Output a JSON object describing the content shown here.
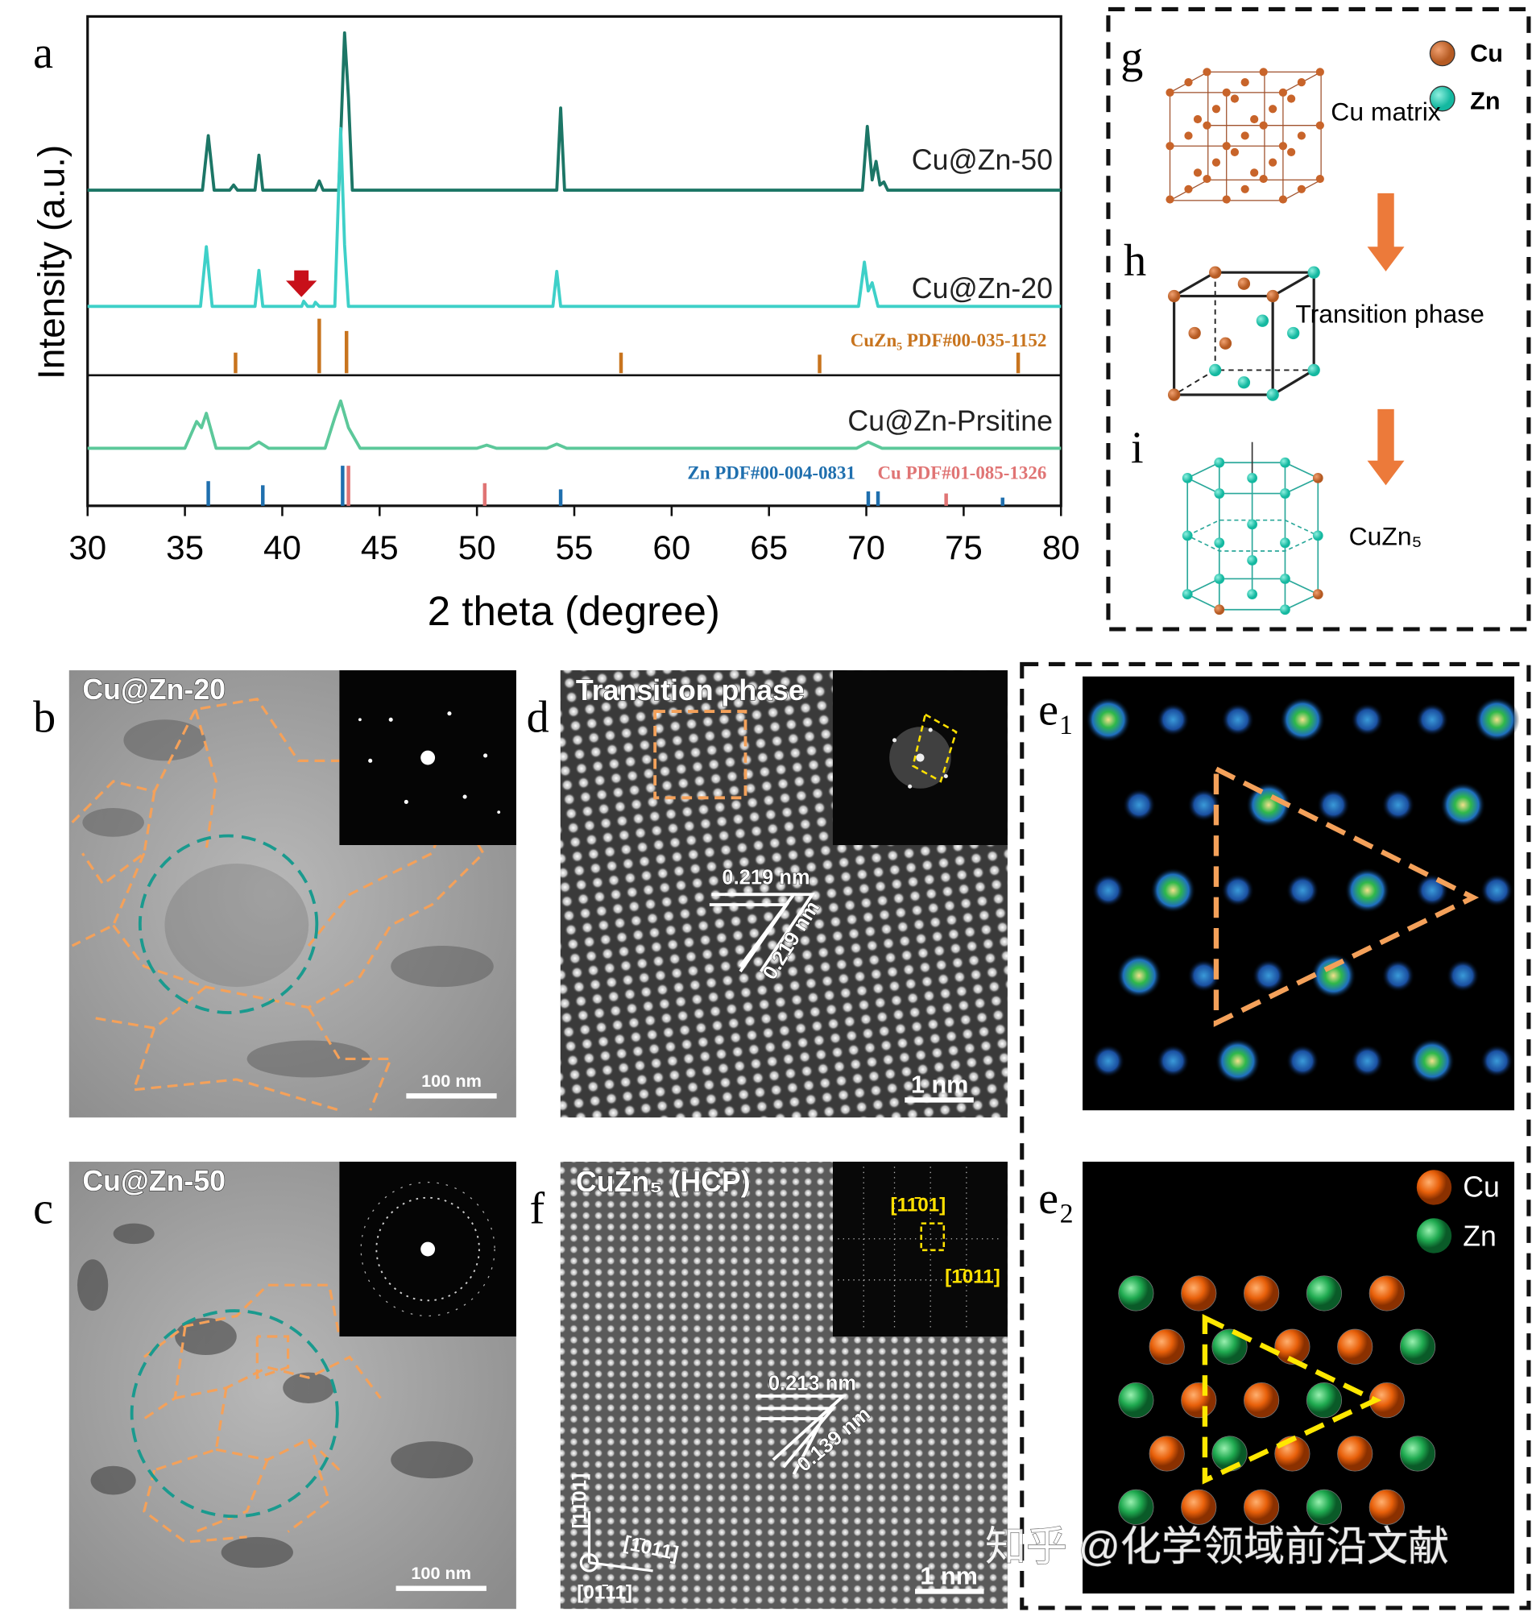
{
  "xrd": {
    "type": "line",
    "panel_label": "a",
    "xlabel": "2 theta (degree)",
    "ylabel": "Intensity (a.u.)",
    "xlim": [
      30,
      80
    ],
    "xticks": [
      30,
      35,
      40,
      45,
      50,
      55,
      60,
      65,
      70,
      75,
      80
    ],
    "series": [
      {
        "name": "Cu@Zn-50",
        "color": "#1c7666",
        "x": [
          30,
          35.9,
          36.2,
          36.5,
          37.3,
          37.5,
          37.7,
          38.6,
          38.8,
          39.0,
          41.7,
          41.9,
          42.1,
          42.9,
          43.2,
          43.4,
          43.6,
          54.1,
          54.3,
          54.5,
          69.8,
          70.05,
          70.3,
          70.5,
          70.7,
          70.9,
          71.1,
          80
        ],
        "values": [
          0,
          0,
          53,
          0,
          0,
          5,
          0,
          0,
          34,
          0,
          0,
          9,
          0,
          0,
          153,
          90,
          0,
          0,
          80,
          0,
          0,
          62,
          10,
          28,
          5,
          8,
          0,
          0
        ]
      },
      {
        "name": "Cu@Zn-20",
        "color": "#3ed0c8",
        "x": [
          30,
          35.8,
          36.1,
          36.4,
          38.6,
          38.8,
          39.0,
          41.0,
          41.1,
          41.3,
          41.6,
          41.7,
          41.9,
          42.7,
          43.0,
          43.2,
          43.4,
          53.9,
          54.1,
          54.3,
          69.6,
          69.9,
          70.1,
          70.3,
          70.6,
          80
        ],
        "values": [
          0,
          0,
          58,
          0,
          0,
          35,
          0,
          0,
          5,
          0,
          0,
          4,
          0,
          0,
          173,
          60,
          0,
          0,
          34,
          0,
          0,
          43,
          15,
          23,
          0,
          0
        ]
      },
      {
        "name": "Cu@Zn-Prsitine",
        "color": "#5cc89a",
        "x": [
          30,
          35.0,
          35.6,
          35.85,
          36.1,
          36.6,
          38.3,
          38.8,
          39.3,
          42.2,
          42.7,
          43.0,
          43.4,
          44.0,
          50.0,
          50.5,
          51.0,
          53.6,
          54.1,
          54.6,
          69.5,
          70.1,
          70.8,
          80
        ],
        "values": [
          0,
          0,
          26,
          20,
          34,
          0,
          0,
          6,
          0,
          0,
          30,
          46,
          20,
          0,
          0,
          3,
          0,
          0,
          4,
          0,
          0,
          6,
          0,
          0
        ]
      }
    ],
    "references": [
      {
        "name": "CuZn₅ PDF#00-035-1152",
        "color": "#c8741e",
        "x": [
          37.6,
          41.9,
          43.3,
          57.4,
          67.6,
          77.8
        ],
        "values": [
          20,
          53,
          41,
          20,
          18,
          20
        ]
      },
      {
        "name": "Zn PDF#00-004-0831",
        "color": "#1f6fae",
        "x": [
          36.2,
          39.0,
          43.1,
          54.3,
          70.1,
          70.6,
          77.0
        ],
        "values": [
          24,
          20,
          39,
          16,
          14,
          14,
          8
        ]
      },
      {
        "name": "Cu PDF#01-085-1326",
        "color": "#e07474",
        "x": [
          43.4,
          50.4,
          74.1
        ],
        "values": [
          39,
          22,
          12
        ]
      }
    ]
  },
  "schematic": {
    "labels": [
      "g",
      "h",
      "i"
    ],
    "legend": [
      "Cu",
      "Zn"
    ],
    "steps": [
      "Cu matrix",
      "Transition phase",
      "CuZn₅"
    ]
  },
  "panels": {
    "b": {
      "label": "b",
      "title": "Cu@Zn-20",
      "scale": "100 nm"
    },
    "c": {
      "label": "c",
      "title": "Cu@Zn-50",
      "scale": "100 nm"
    },
    "d": {
      "label": "d",
      "title": "Transition phase",
      "spacings": [
        "0.219 nm",
        "0.219 nm"
      ],
      "scale": "1 nm"
    },
    "f": {
      "label": "f",
      "title": "CuZn₅ (HCP)",
      "spacings": [
        "0.213 nm",
        "0.139 nm"
      ],
      "fft": [
        "[11̄01]",
        "[1̄011]"
      ],
      "axes": [
        "[11̄01]",
        "[1̄011]",
        "[01̄11]"
      ],
      "scale": "1 nm"
    },
    "e1": {
      "label": "e₁"
    },
    "e2": {
      "label": "e₂",
      "legend": [
        "Cu",
        "Zn"
      ]
    }
  },
  "watermark": "知乎 @化学领域前沿文献"
}
